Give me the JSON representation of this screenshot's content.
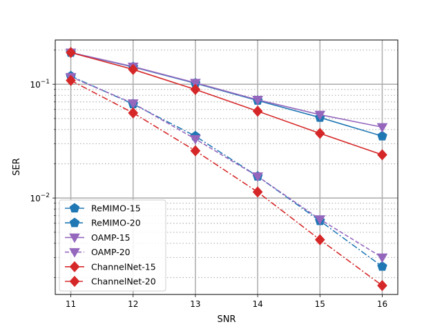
{
  "chart_data": {
    "type": "line",
    "title": "",
    "xlabel": "SNR",
    "ylabel": "SER",
    "x": [
      11,
      12,
      13,
      14,
      15,
      16
    ],
    "x_ticks": [
      "11",
      "12",
      "13",
      "14",
      "15",
      "16"
    ],
    "xlim": [
      10.75,
      16.25
    ],
    "ylim": [
      0.00142,
      0.245
    ],
    "yscale": "log",
    "y_major_ticks": [
      {
        "value": 0.1,
        "base": "10",
        "exp": "−1"
      },
      {
        "value": 0.01,
        "base": "10",
        "exp": "−2"
      }
    ],
    "grid": true,
    "legend_position": "lower-left",
    "series": [
      {
        "name": "ReMIMO-15",
        "color": "#1f77b4",
        "marker": "pentagon",
        "linestyle": "solid",
        "values": [
          0.19,
          0.142,
          0.102,
          0.072,
          0.051,
          0.035
        ]
      },
      {
        "name": "ReMIMO-20",
        "color": "#1f77b4",
        "marker": "pentagon",
        "linestyle": "dashdot",
        "values": [
          0.118,
          0.067,
          0.035,
          0.0155,
          0.0063,
          0.0025
        ]
      },
      {
        "name": "OAMP-15",
        "color": "#9467bd",
        "marker": "triangle-down",
        "linestyle": "solid",
        "values": [
          0.19,
          0.143,
          0.103,
          0.073,
          0.054,
          0.042
        ]
      },
      {
        "name": "OAMP-20",
        "color": "#9467bd",
        "marker": "triangle-down",
        "linestyle": "dashed",
        "values": [
          0.116,
          0.068,
          0.033,
          0.0155,
          0.0065,
          0.003
        ]
      },
      {
        "name": "ChannelNet-15",
        "color": "#d62728",
        "marker": "diamond",
        "linestyle": "solid",
        "values": [
          0.19,
          0.135,
          0.09,
          0.058,
          0.037,
          0.024
        ]
      },
      {
        "name": "ChannelNet-20",
        "color": "#d62728",
        "marker": "diamond",
        "linestyle": "dashdot",
        "values": [
          0.108,
          0.056,
          0.026,
          0.0113,
          0.0043,
          0.0017
        ]
      }
    ]
  }
}
